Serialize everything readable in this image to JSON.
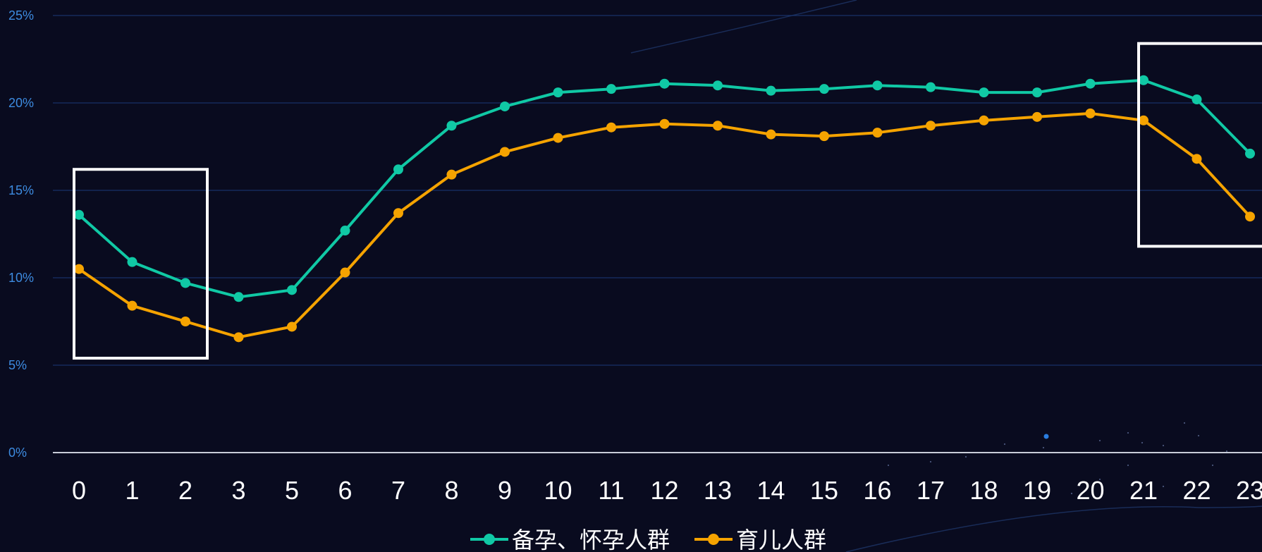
{
  "chart_data": {
    "type": "line",
    "categories": [
      "0",
      "1",
      "2",
      "3",
      "5",
      "6",
      "7",
      "8",
      "9",
      "10",
      "11",
      "12",
      "13",
      "14",
      "15",
      "16",
      "17",
      "18",
      "19",
      "20",
      "21",
      "22",
      "23"
    ],
    "ylim": [
      0,
      25
    ],
    "yticks": [
      "0%",
      "5%",
      "10%",
      "15%",
      "20%",
      "25%"
    ],
    "ytick_values": [
      0,
      5,
      10,
      15,
      20,
      25
    ],
    "grid": true,
    "legend_position": "bottom-center",
    "series": [
      {
        "name": "备孕、怀孕人群",
        "color": "#10c9a5",
        "values": [
          13.6,
          10.9,
          9.7,
          8.9,
          9.3,
          12.7,
          16.2,
          18.7,
          19.8,
          20.6,
          20.8,
          21.1,
          21.0,
          20.7,
          20.8,
          21.0,
          20.9,
          20.6,
          20.6,
          21.1,
          21.3,
          20.2,
          17.1
        ]
      },
      {
        "name": "育儿人群",
        "color": "#f5a300",
        "values": [
          10.5,
          8.4,
          7.5,
          6.6,
          7.2,
          10.3,
          13.7,
          15.9,
          17.2,
          18.0,
          18.6,
          18.8,
          18.7,
          18.2,
          18.1,
          18.3,
          18.7,
          19.0,
          19.2,
          19.4,
          19.0,
          16.8,
          13.5
        ]
      }
    ],
    "highlight_boxes": [
      {
        "category_range": [
          "0",
          "2"
        ],
        "value_range": [
          5.4,
          16.2
        ]
      },
      {
        "category_range": [
          "21",
          "23"
        ],
        "value_range": [
          11.8,
          23.4
        ]
      }
    ],
    "colors": {
      "background": "#090b1f",
      "grid": "#1b3a78",
      "axis": "#c8ccd8",
      "ytick": "#3d8be0",
      "xtick": "#ffffff",
      "legend_text": "#ffffff",
      "highlight_box": "#ffffff"
    }
  }
}
